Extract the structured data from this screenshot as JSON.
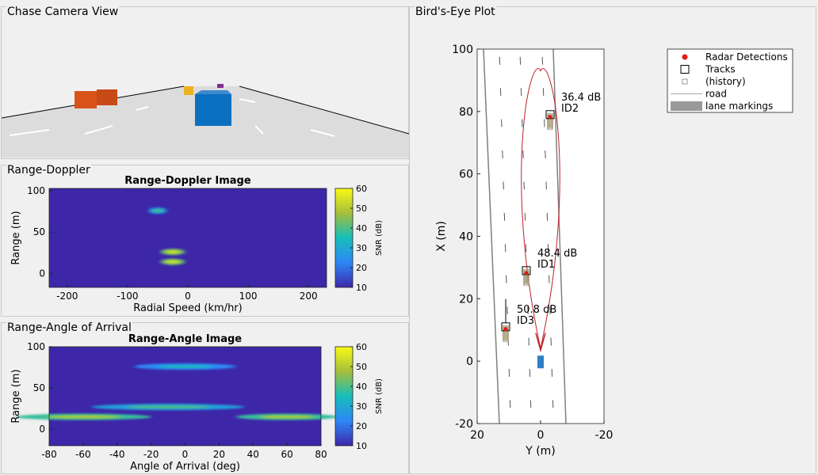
{
  "panels": {
    "chase": {
      "title": "Chase Camera View"
    },
    "range_doppler": {
      "title": "Range-Doppler"
    },
    "range_angle": {
      "title": "Range-Angle of Arrival"
    },
    "birds_eye": {
      "title": "Bird's-Eye Plot"
    }
  },
  "chart_data": [
    {
      "type": "heatmap",
      "title": "Range-Doppler Image",
      "xlabel": "Radial Speed (km/hr)",
      "ylabel": "Range (m)",
      "xlim": [
        -230,
        230
      ],
      "ylim": [
        -17,
        103
      ],
      "xticks": [
        -200,
        -100,
        0,
        100,
        200
      ],
      "yticks": [
        0,
        50,
        100
      ],
      "colorbar": {
        "label": "SNR (dB)",
        "range": [
          10,
          60
        ],
        "ticks": [
          10,
          20,
          30,
          40,
          50,
          60
        ]
      },
      "blobs": [
        {
          "x": -50,
          "y": 76,
          "x_span": 30,
          "snr": 40
        },
        {
          "x": -25,
          "y": 26,
          "x_span": 40,
          "snr": 55
        },
        {
          "x": -25,
          "y": 14,
          "x_span": 40,
          "snr": 55
        }
      ]
    },
    {
      "type": "heatmap",
      "title": "Range-Angle Image",
      "xlabel": "Angle of Arrival (deg)",
      "ylabel": "Range (m)",
      "xlim": [
        -80,
        80
      ],
      "ylim": [
        -20,
        100
      ],
      "xticks": [
        -80,
        -60,
        -40,
        -20,
        0,
        20,
        40,
        60,
        80
      ],
      "yticks": [
        0,
        50,
        100
      ],
      "colorbar": {
        "label": "SNR (dB)",
        "range": [
          10,
          60
        ],
        "ticks": [
          10,
          20,
          30,
          40,
          50,
          60
        ]
      },
      "blobs": [
        {
          "x": 0,
          "y": 76,
          "x_span": 60,
          "snr": 35
        },
        {
          "x": -10,
          "y": 27,
          "x_span": 90,
          "snr": 40
        },
        {
          "x": -60,
          "y": 15,
          "x_span": 80,
          "snr": 50
        },
        {
          "x": 60,
          "y": 15,
          "x_span": 60,
          "snr": 50
        }
      ]
    },
    {
      "type": "scatter",
      "title": "",
      "xlabel": "Y (m)",
      "ylabel": "X (m)",
      "xlim": [
        20,
        -20
      ],
      "ylim": [
        -20,
        100
      ],
      "xticks": [
        20,
        0,
        -20
      ],
      "yticks": [
        -20,
        0,
        20,
        40,
        60,
        80,
        100
      ],
      "legend": {
        "position": "top-right",
        "entries": [
          "Radar Detections",
          "Tracks",
          "(history)",
          "road",
          "lane markings"
        ]
      },
      "tracks": [
        {
          "id": "ID2",
          "snr_label": "36.4 dB",
          "y": -3,
          "x": 79
        },
        {
          "id": "ID1",
          "snr_label": "48.4 dB",
          "y": 4.5,
          "x": 29
        },
        {
          "id": "ID3",
          "snr_label": "50.8 dB",
          "y": 11,
          "x": 11
        }
      ],
      "ego": {
        "y": 0,
        "x": 1
      }
    }
  ],
  "colors": {
    "bg": "#f0f0f0",
    "heat_low": "#3d26a8",
    "ego": "#2f7fc4",
    "detection": "#e21a1a",
    "ellipse": "#c0202a"
  }
}
